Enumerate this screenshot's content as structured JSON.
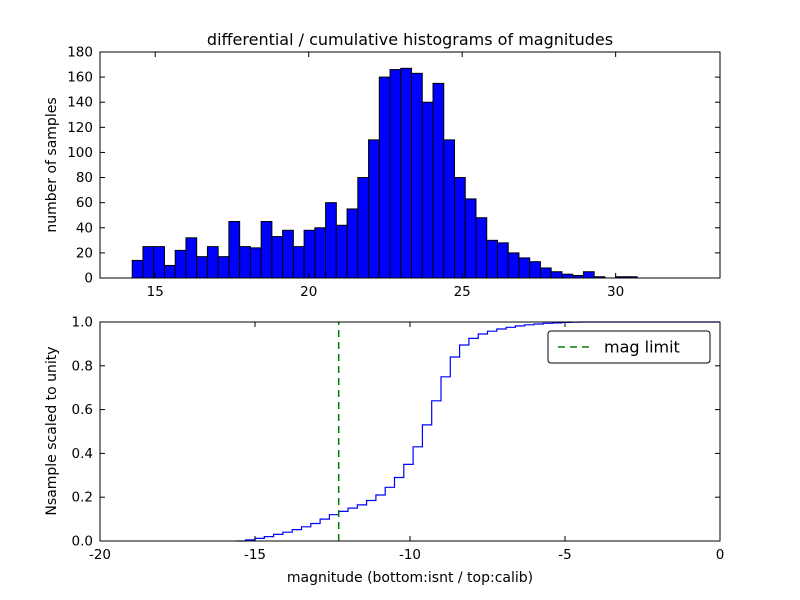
{
  "chart_data": [
    {
      "type": "bar",
      "title": "differential / cumulative histograms of magnitudes",
      "ylabel": "number of samples",
      "xlabel": "",
      "bin_start": 14.25,
      "bin_width": 0.35,
      "values": [
        14,
        25,
        25,
        10,
        22,
        32,
        17,
        25,
        17,
        45,
        25,
        24,
        45,
        33,
        38,
        25,
        38,
        40,
        60,
        42,
        55,
        80,
        110,
        160,
        166,
        167,
        163,
        140,
        155,
        110,
        80,
        63,
        48,
        30,
        28,
        20,
        16,
        13,
        8,
        5,
        3,
        2,
        5,
        1,
        0,
        1,
        1,
        0
      ],
      "xlim": [
        13.2,
        33.4
      ],
      "ylim": [
        0,
        180
      ],
      "xticks": [
        15,
        20,
        25,
        30
      ],
      "xtick_labels": [
        "15",
        "20",
        "25",
        "30"
      ],
      "yticks": [
        0,
        20,
        40,
        60,
        80,
        100,
        120,
        140,
        160,
        180
      ],
      "ytick_labels": [
        "0",
        "20",
        "40",
        "60",
        "80",
        "100",
        "120",
        "140",
        "160",
        "180"
      ],
      "bar_color": "#0000ff",
      "bar_edge_color": "#000000",
      "grid": false,
      "legend_position": "none"
    },
    {
      "type": "line",
      "step": true,
      "title": "",
      "ylabel": "Nsample scaled to unity",
      "xlabel": "magnitude (bottom:isnt / top:calib)",
      "x": [
        -15.6,
        -15.3,
        -15.0,
        -14.7,
        -14.4,
        -14.1,
        -13.8,
        -13.5,
        -13.2,
        -12.9,
        -12.6,
        -12.3,
        -12.0,
        -11.7,
        -11.4,
        -11.1,
        -10.8,
        -10.5,
        -10.2,
        -9.9,
        -9.6,
        -9.3,
        -9.0,
        -8.7,
        -8.4,
        -8.1,
        -7.8,
        -7.5,
        -7.2,
        -6.9,
        -6.6,
        -6.3,
        -6.0,
        -5.7,
        -5.4,
        -5.1,
        -4.8,
        -4.5
      ],
      "y": [
        0.0,
        0.005,
        0.012,
        0.02,
        0.03,
        0.04,
        0.052,
        0.065,
        0.08,
        0.1,
        0.12,
        0.135,
        0.15,
        0.165,
        0.185,
        0.21,
        0.245,
        0.29,
        0.35,
        0.43,
        0.53,
        0.64,
        0.75,
        0.84,
        0.895,
        0.925,
        0.945,
        0.958,
        0.968,
        0.976,
        0.982,
        0.987,
        0.991,
        0.994,
        0.996,
        0.998,
        0.999,
        1.0
      ],
      "xlim": [
        -20,
        0
      ],
      "ylim": [
        0,
        1.0
      ],
      "xticks": [
        -20,
        -15,
        -10,
        -5,
        0
      ],
      "xtick_labels": [
        "-20",
        "-15",
        "-10",
        "-5",
        "0"
      ],
      "yticks": [
        0,
        0.2,
        0.4,
        0.6,
        0.8,
        1.0
      ],
      "ytick_labels": [
        "0.0",
        "0.2",
        "0.4",
        "0.6",
        "0.8",
        "1.0"
      ],
      "line_color": "#0000ff",
      "vline": {
        "x": -12.3,
        "color": "#008000",
        "style": "dashed",
        "label": "mag limit"
      },
      "legend": {
        "position": "upper right",
        "entries": [
          "mag limit"
        ]
      },
      "grid": false
    }
  ]
}
